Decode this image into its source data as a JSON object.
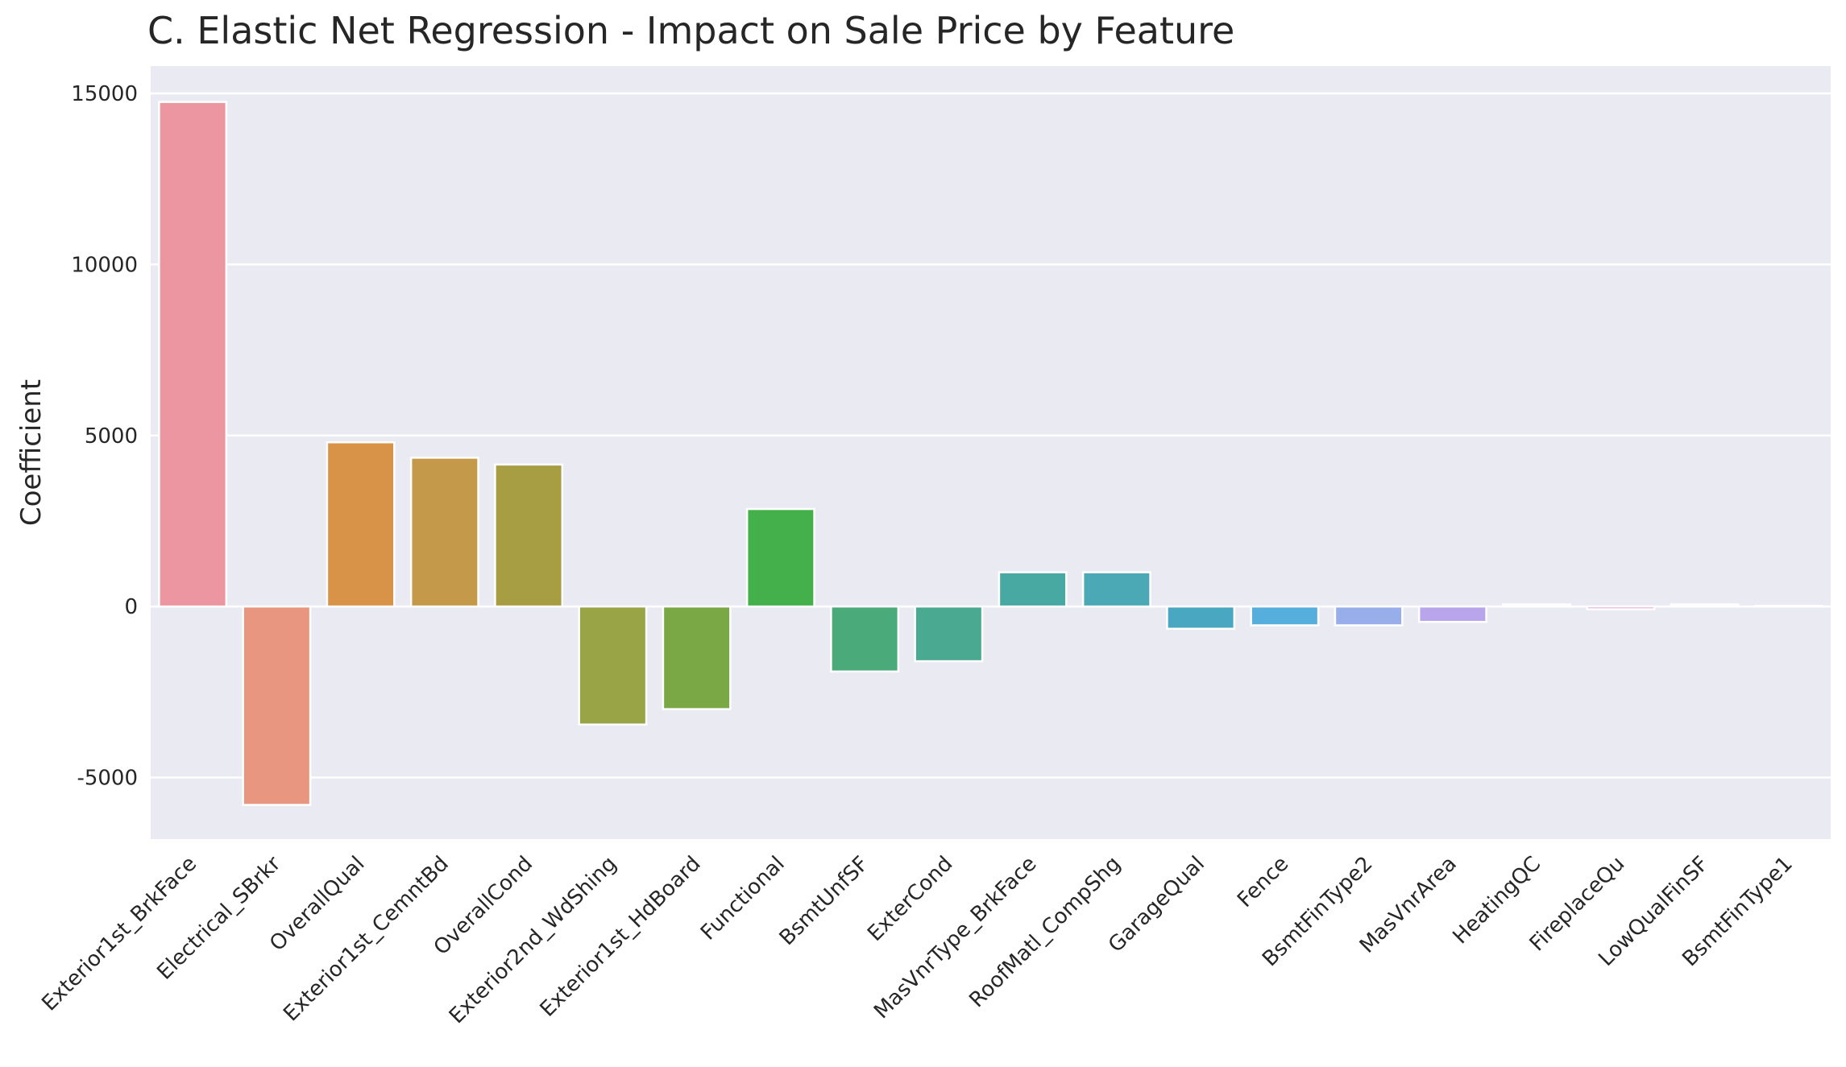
{
  "chart_data": {
    "type": "bar",
    "title": "C. Elastic Net Regression - Impact on Sale Price by Feature",
    "xlabel": "",
    "ylabel": "Coefficient",
    "ylim": [
      -6800,
      15800
    ],
    "yticks": [
      -5000,
      0,
      5000,
      10000,
      15000
    ],
    "grid": true,
    "categories": [
      "Exterior1st_BrkFace",
      "Electrical_SBrkr",
      "OverallQual",
      "Exterior1st_CemntBd",
      "OverallCond",
      "Exterior2nd_WdShing",
      "Exterior1st_HdBoard",
      "Functional",
      "BsmtUnfSF",
      "ExterCond",
      "MasVnrType_BrkFace",
      "RoofMatl_CompShg",
      "GarageQual",
      "Fence",
      "BsmtFinType2",
      "MasVnrArea",
      "HeatingQC",
      "FireplaceQu",
      "LowQualFinSF",
      "BsmtFinType1"
    ],
    "values": [
      14750,
      -5800,
      4800,
      4350,
      4150,
      -3450,
      -3000,
      2850,
      -1900,
      -1600,
      1000,
      1000,
      -650,
      -550,
      -550,
      -450,
      60,
      -80,
      60,
      20
    ],
    "colors": [
      "#ec96a1",
      "#e8967f",
      "#d89348",
      "#c49a4a",
      "#a79e44",
      "#98a446",
      "#7aa844",
      "#44b04c",
      "#4aaa79",
      "#4aaa91",
      "#47a9a2",
      "#4aa9b4",
      "#4aa7c2",
      "#55aedb",
      "#98aeea",
      "#b8a5ec",
      "#d49ee8",
      "#e098d8",
      "#e8a2cd",
      "#ec9cb6"
    ]
  }
}
